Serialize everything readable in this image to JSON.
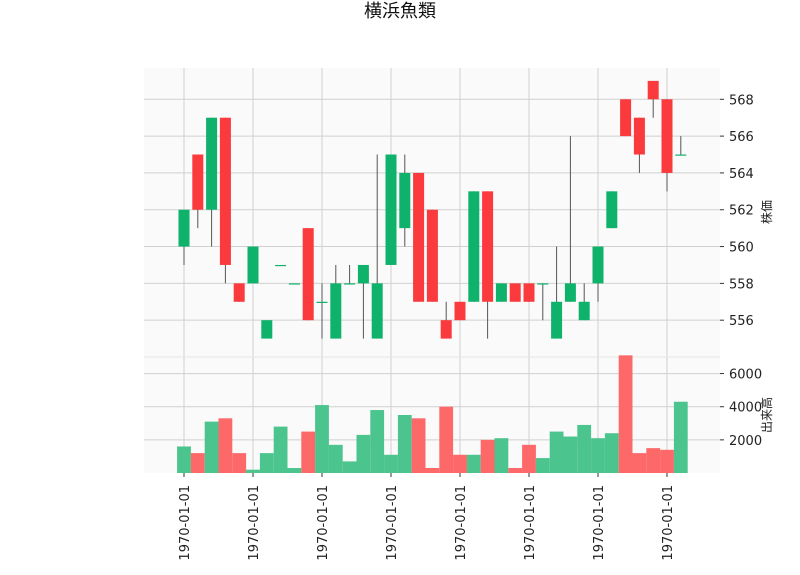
{
  "chart_data": {
    "type": "candlestick",
    "title": "横浜魚類",
    "price_axis": {
      "label": "株価",
      "ticks": [
        556,
        558,
        560,
        562,
        564,
        566,
        568
      ],
      "ylim": [
        554.0,
        569.7
      ]
    },
    "volume_axis": {
      "label": "出来高",
      "ticks": [
        2000,
        4000,
        6000
      ],
      "ylim": [
        0,
        7000
      ]
    },
    "x_tick_labels": [
      "1970-01-01",
      "1970-01-01",
      "1970-01-01",
      "1970-01-01",
      "1970-01-01",
      "1970-01-01",
      "1970-01-01",
      "1970-01-01"
    ],
    "grid": true,
    "colors": {
      "up": "#0fb26b",
      "down": "#fa3a3c",
      "up_volume": "#4bc48d",
      "down_volume": "#fd6869",
      "panel_bg": "#fafafa",
      "grid": "#d0d0d0",
      "wick": "#555555"
    },
    "candles": [
      {
        "open": 560,
        "close": 562,
        "high": 562,
        "low": 559
      },
      {
        "open": 565,
        "close": 562,
        "high": 565,
        "low": 561
      },
      {
        "open": 562,
        "close": 567,
        "high": 567,
        "low": 560
      },
      {
        "open": 567,
        "close": 559,
        "high": 567,
        "low": 558
      },
      {
        "open": 558,
        "close": 557,
        "high": 558,
        "low": 557
      },
      {
        "open": 558,
        "close": 560,
        "high": 560,
        "low": 558
      },
      {
        "open": 555,
        "close": 556,
        "high": 556,
        "low": 555
      },
      {
        "open": 559,
        "close": 559,
        "high": 559,
        "low": 559
      },
      {
        "open": 558,
        "close": 558,
        "high": 558,
        "low": 558
      },
      {
        "open": 561,
        "close": 556,
        "high": 561,
        "low": 556
      },
      {
        "open": 557,
        "close": 557,
        "high": 558,
        "low": 555
      },
      {
        "open": 555,
        "close": 558,
        "high": 559,
        "low": 555
      },
      {
        "open": 558,
        "close": 558,
        "high": 559,
        "low": 558
      },
      {
        "open": 558,
        "close": 559,
        "high": 559,
        "low": 555
      },
      {
        "open": 555,
        "close": 558,
        "high": 565,
        "low": 555
      },
      {
        "open": 559,
        "close": 565,
        "high": 565,
        "low": 559
      },
      {
        "open": 561,
        "close": 564,
        "high": 565,
        "low": 560
      },
      {
        "open": 564,
        "close": 557,
        "high": 564,
        "low": 557
      },
      {
        "open": 562,
        "close": 557,
        "high": 562,
        "low": 557
      },
      {
        "open": 556,
        "close": 555,
        "high": 557,
        "low": 555
      },
      {
        "open": 557,
        "close": 556,
        "high": 557,
        "low": 556
      },
      {
        "open": 557,
        "close": 563,
        "high": 563,
        "low": 557
      },
      {
        "open": 563,
        "close": 557,
        "high": 563,
        "low": 555
      },
      {
        "open": 557,
        "close": 558,
        "high": 558,
        "low": 557
      },
      {
        "open": 558,
        "close": 557,
        "high": 558,
        "low": 557
      },
      {
        "open": 558,
        "close": 557,
        "high": 558,
        "low": 557
      },
      {
        "open": 558,
        "close": 558,
        "high": 558,
        "low": 556
      },
      {
        "open": 555,
        "close": 557,
        "high": 560,
        "low": 555
      },
      {
        "open": 557,
        "close": 558,
        "high": 566,
        "low": 557
      },
      {
        "open": 556,
        "close": 557,
        "high": 558,
        "low": 556
      },
      {
        "open": 558,
        "close": 560,
        "high": 560,
        "low": 557
      },
      {
        "open": 561,
        "close": 563,
        "high": 563,
        "low": 561
      },
      {
        "open": 568,
        "close": 566,
        "high": 568,
        "low": 566
      },
      {
        "open": 567,
        "close": 565,
        "high": 567,
        "low": 564
      },
      {
        "open": 569,
        "close": 568,
        "high": 569,
        "low": 567
      },
      {
        "open": 568,
        "close": 564,
        "high": 568,
        "low": 563
      },
      {
        "open": 565,
        "close": 565,
        "high": 566,
        "low": 565
      }
    ],
    "volumes": [
      1600,
      1200,
      3100,
      3300,
      1200,
      200,
      1200,
      2800,
      300,
      2500,
      4100,
      1700,
      700,
      2300,
      3800,
      1100,
      3500,
      3300,
      300,
      4000,
      1100,
      1100,
      2000,
      2100,
      300,
      1700,
      900,
      2500,
      2200,
      2900,
      2100,
      2400,
      7100,
      1200,
      1500,
      1400,
      4300
    ]
  }
}
